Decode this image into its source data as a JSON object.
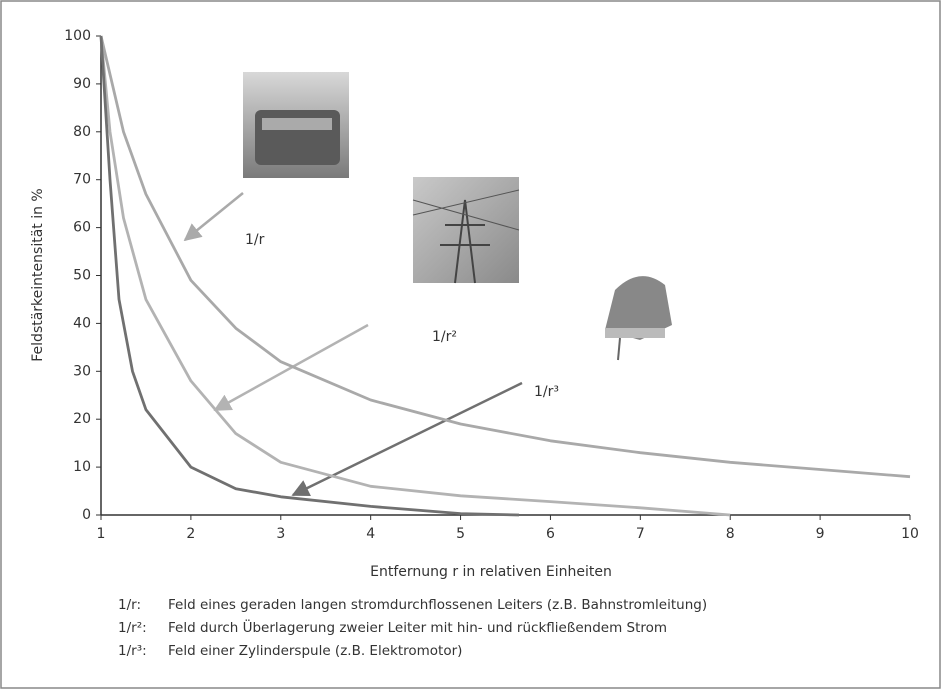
{
  "chart_data": {
    "type": "line",
    "x_label": "Entfernung r in relativen Einheiten",
    "y_label": "Feldstärkeintensität in %",
    "xlim": [
      1,
      10
    ],
    "ylim": [
      0,
      100
    ],
    "xticks": [
      1,
      2,
      3,
      4,
      5,
      6,
      7,
      8,
      9,
      10
    ],
    "yticks": [
      0,
      10,
      20,
      30,
      40,
      50,
      60,
      70,
      80,
      90,
      100
    ],
    "grid": false,
    "series": [
      {
        "name": "1/r",
        "color": "#a9a9a9",
        "x": [
          1,
          1.25,
          1.5,
          2,
          2.5,
          3,
          4,
          5,
          6,
          7,
          8,
          9,
          10
        ],
        "values": [
          100,
          80,
          67,
          49,
          39,
          32,
          24,
          19,
          15.5,
          13,
          11,
          9.5,
          8
        ]
      },
      {
        "name": "1/r²",
        "color": "#b3b3b3",
        "x": [
          1,
          1.1,
          1.25,
          1.5,
          2,
          2.5,
          3,
          4,
          5,
          6,
          7,
          8
        ],
        "values": [
          100,
          80,
          62,
          45,
          28,
          17,
          11,
          6,
          4,
          2.8,
          1.5,
          0
        ]
      },
      {
        "name": "1/r³",
        "color": "#707070",
        "x": [
          1,
          1.1,
          1.2,
          1.35,
          1.5,
          2,
          2.5,
          3,
          4,
          5,
          5.65
        ],
        "values": [
          100,
          70,
          45,
          30,
          22,
          10,
          5.5,
          3.8,
          1.8,
          0.3,
          0
        ]
      }
    ],
    "notes": [
      {
        "key": "1/r:",
        "text": "Feld eines geraden langen stromdurchflossenen Leiters (z.B. Bahnstromleitung)"
      },
      {
        "key": "1/r²:",
        "text": "Feld durch Überlagerung zweier Leiter mit hin- und rückfließendem Strom"
      },
      {
        "key": "1/r³:",
        "text": "Feld einer Zylinderspule (z.B. Elektromotor)"
      }
    ]
  }
}
